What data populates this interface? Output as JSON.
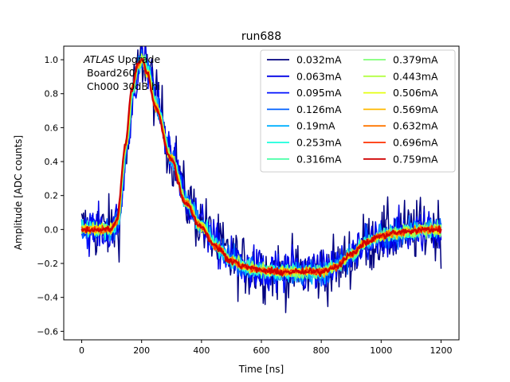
{
  "chart_data": {
    "type": "line",
    "title": "run688",
    "xlabel": "Time [ns]",
    "ylabel": "Amplitude [ADC counts]",
    "xlim": [
      -60,
      1260
    ],
    "ylim": [
      -0.65,
      1.08
    ],
    "xticks": [
      0,
      200,
      400,
      600,
      800,
      1000,
      1200
    ],
    "yticks": [
      -0.6,
      -0.4,
      -0.2,
      0.0,
      0.2,
      0.4,
      0.6,
      0.8,
      1.0
    ],
    "annotation": {
      "line1_italic": "ATLAS",
      "line1_rest": " Upgrade",
      "line2": "Board260",
      "line3": "Ch000 30dB hi"
    },
    "legend_position": "top-right",
    "legend_columns": 2,
    "series": [
      {
        "name": "0.032mA",
        "color": "#00007f",
        "noise": 0.17
      },
      {
        "name": "0.063mA",
        "color": "#0000e5",
        "noise": 0.12
      },
      {
        "name": "0.095mA",
        "color": "#0010ff",
        "noise": 0.09
      },
      {
        "name": "0.126mA",
        "color": "#0060ff",
        "noise": 0.07
      },
      {
        "name": "0.19mA",
        "color": "#00b0ff",
        "noise": 0.055
      },
      {
        "name": "0.253mA",
        "color": "#19ffdd",
        "noise": 0.045
      },
      {
        "name": "0.316mA",
        "color": "#4dffa9",
        "noise": 0.04
      },
      {
        "name": "0.379mA",
        "color": "#80ff77",
        "noise": 0.035
      },
      {
        "name": "0.443mA",
        "color": "#b3ff44",
        "noise": 0.03
      },
      {
        "name": "0.506mA",
        "color": "#e5ff12",
        "noise": 0.027
      },
      {
        "name": "0.569mA",
        "color": "#ffb900",
        "noise": 0.024
      },
      {
        "name": "0.632mA",
        "color": "#ff7600",
        "noise": 0.021
      },
      {
        "name": "0.696mA",
        "color": "#ff3000",
        "noise": 0.019
      },
      {
        "name": "0.759mA",
        "color": "#d00000",
        "noise": 0.017
      }
    ],
    "pulse_shape": {
      "x": [
        0,
        100,
        120,
        150,
        170,
        190,
        205,
        220,
        250,
        300,
        350,
        400,
        450,
        500,
        550,
        600,
        650,
        700,
        750,
        800,
        850,
        900,
        950,
        1000,
        1050,
        1100,
        1150,
        1200
      ],
      "y": [
        0.0,
        0.0,
        0.05,
        0.5,
        0.82,
        0.97,
        1.0,
        0.93,
        0.72,
        0.42,
        0.16,
        0.02,
        -0.1,
        -0.18,
        -0.22,
        -0.24,
        -0.25,
        -0.25,
        -0.25,
        -0.25,
        -0.22,
        -0.15,
        -0.08,
        -0.04,
        -0.02,
        -0.01,
        0.0,
        0.0
      ]
    }
  }
}
